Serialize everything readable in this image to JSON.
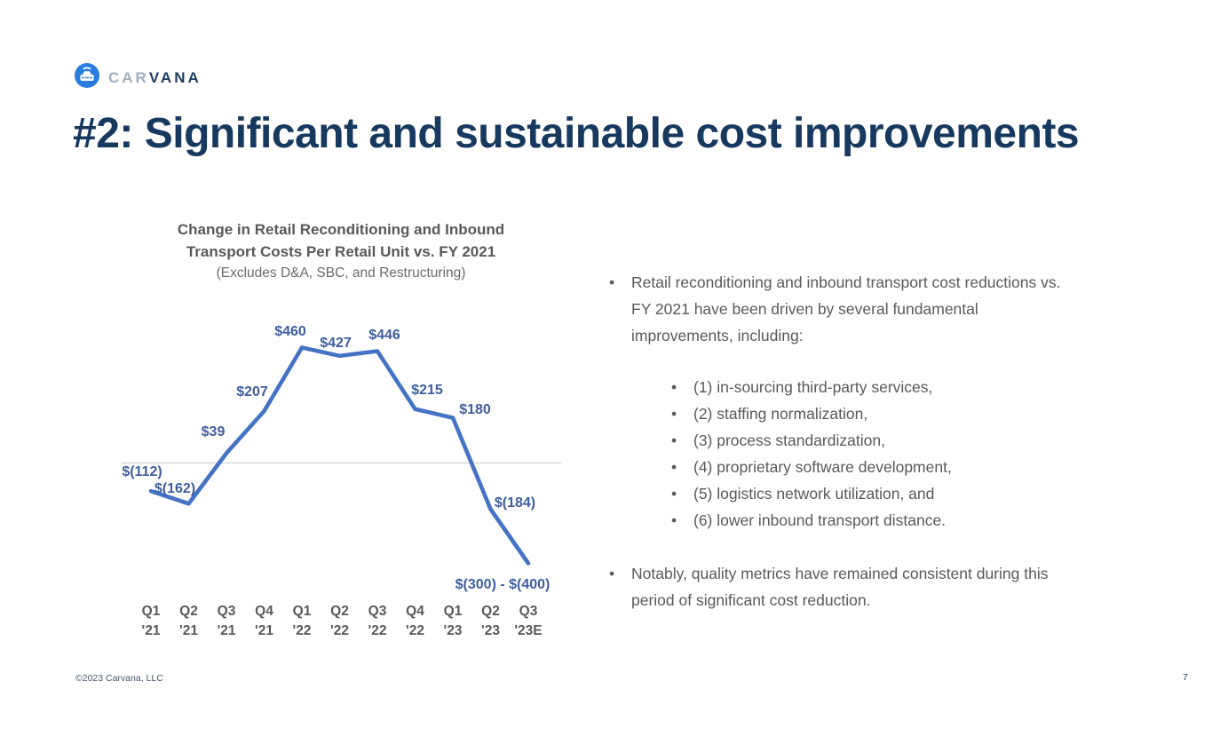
{
  "slide": {
    "title": "#2: Significant and sustainable cost improvements",
    "footer_left": "©2023 Carvana, LLC",
    "page_number": "7"
  },
  "logo": {
    "brand_prefix": "CAR",
    "brand_suffix": "VANA"
  },
  "chart_data": {
    "type": "line",
    "title_line1": "Change in Retail Reconditioning and Inbound",
    "title_line2": "Transport Costs Per Retail Unit vs. FY 2021",
    "subtitle": "(Excludes D&A, SBC, and Restructuring)",
    "categories": [
      "Q1 '21",
      "Q2 '21",
      "Q3 '21",
      "Q4 '21",
      "Q1 '22",
      "Q2 '22",
      "Q3 '22",
      "Q4 '22",
      "Q1 '23",
      "Q2 '23",
      "Q3 '23E"
    ],
    "values": [
      -112,
      -162,
      39,
      207,
      460,
      427,
      446,
      215,
      180,
      -184,
      -400
    ],
    "point_labels": [
      "$(112)",
      "$(162)",
      "$39",
      "$207",
      "$460",
      "$427",
      "$446",
      "$215",
      "$180",
      "$(184)",
      "$(300) - $(400)"
    ],
    "last_value_note": "Q3 '23E is an estimated range of $(300) to $(400)",
    "ylim": [
      -460,
      520
    ],
    "gridlines": "single horizontal gridline at zero only",
    "legend": "none",
    "line_color": "#4472C4",
    "label_color": "#3E5E9E",
    "axis_label_color": "#595959",
    "gridline_color": "#D2D2D2"
  },
  "bullets": {
    "para1": "Retail reconditioning and inbound transport cost reductions vs. FY 2021 have been driven by several fundamental improvements, including:",
    "sub_items": [
      "(1) in-sourcing third-party services,",
      "(2) staffing normalization,",
      "(3) process standardization,",
      "(4) proprietary software development,",
      "(5) logistics network utilization, and",
      "(6) lower inbound transport distance."
    ],
    "para2": "Notably, quality metrics have remained consistent during this period of significant cost reduction.",
    "bullet_glyph": "•"
  },
  "colors": {
    "title_navy": "#17395F",
    "body_gray": "#595959",
    "carvana_blue": "#2A7CDF"
  }
}
